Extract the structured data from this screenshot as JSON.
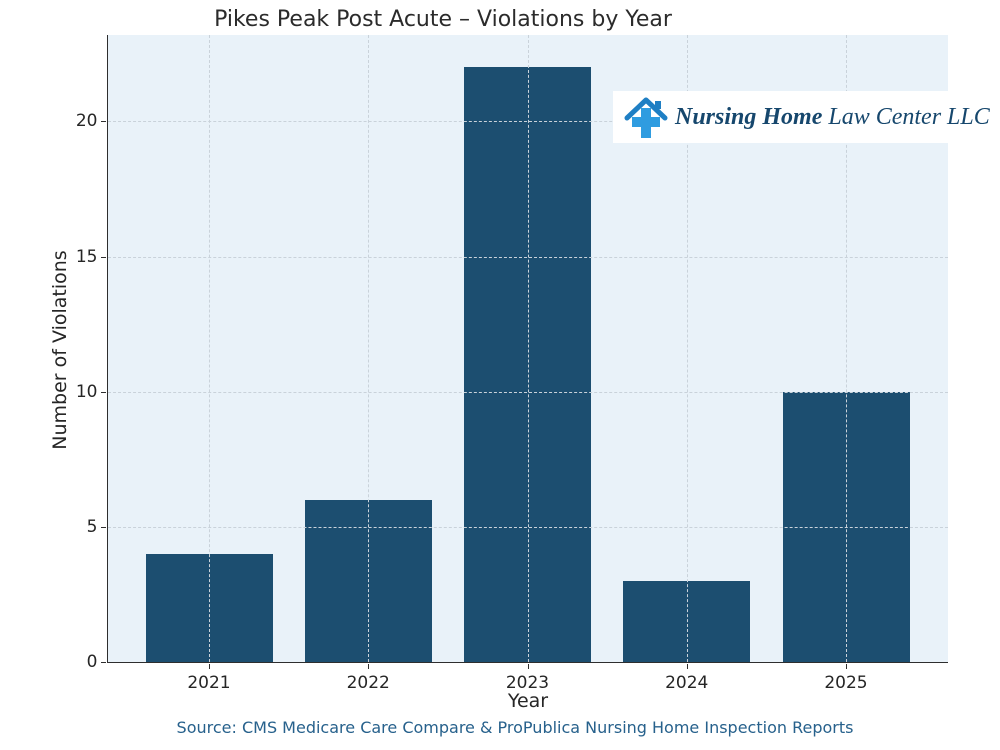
{
  "chart_data": {
    "type": "bar",
    "title": "Pikes Peak Post Acute – Violations by Year",
    "xlabel": "Year",
    "ylabel": "Number of Violations",
    "categories": [
      "2021",
      "2022",
      "2023",
      "2024",
      "2025"
    ],
    "values": [
      4,
      6,
      22,
      3,
      10
    ],
    "yticks": [
      0,
      5,
      10,
      15,
      20
    ],
    "ylim": [
      0,
      23.2
    ],
    "grid": "dashed both axes, drawn above bars",
    "legend": "none",
    "bar_color": "#1c4e70",
    "plot_background": "#e9f2f9"
  },
  "logo": {
    "name_bold": "Nursing Home",
    "name_rest": " Law Center LLC",
    "icon": "house-with-medical-cross",
    "text_color": "#16476d",
    "roof_color": "#1f7fc4",
    "cross_color": "#2f9ce0"
  },
  "source_text": "Source: CMS Medicare Care Compare & ProPublica Nursing Home Inspection Reports"
}
